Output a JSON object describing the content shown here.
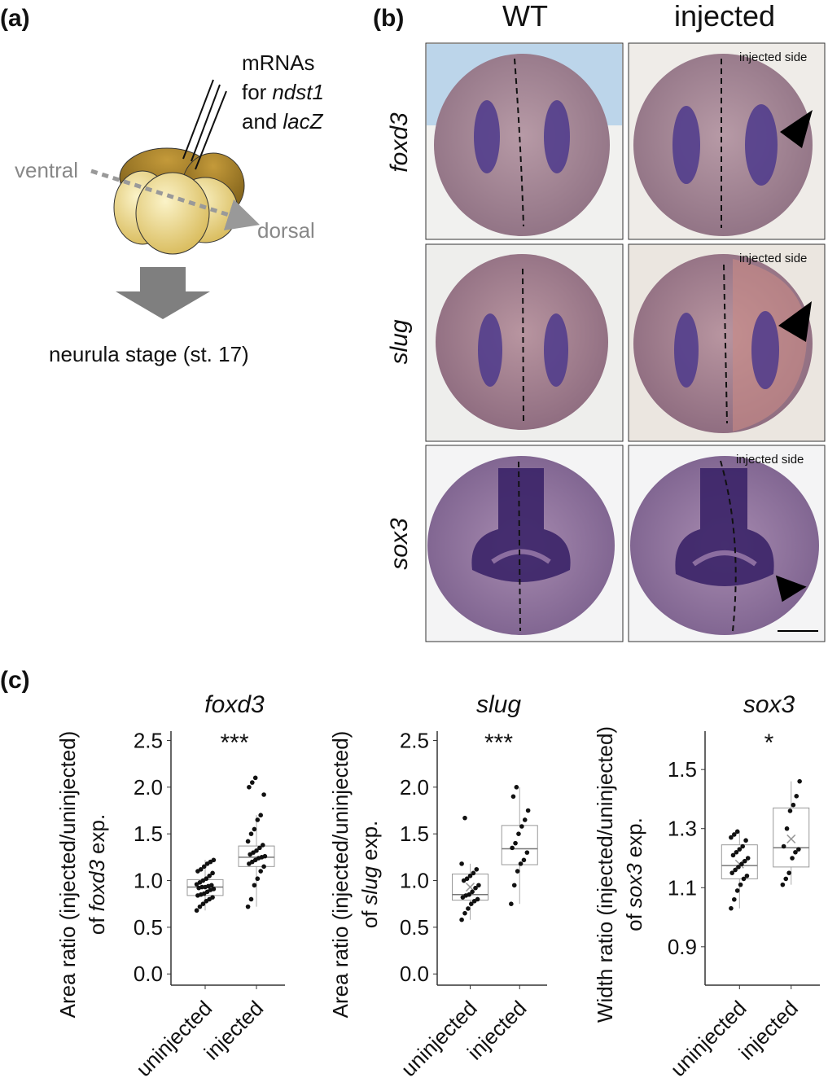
{
  "panel_a": {
    "label": "(a)",
    "mrna_line1": "mRNAs",
    "mrna_line2": [
      "for",
      "ndst1"
    ],
    "mrna_line3": [
      "and",
      "lacZ"
    ],
    "ventral": "ventral",
    "dorsal": "dorsal",
    "stage": "neurula stage (st. 17)"
  },
  "panel_b": {
    "label": "(b)",
    "columns": [
      "WT",
      "injected"
    ],
    "rows": [
      "foxd3",
      "slug",
      "sox3"
    ],
    "annotation": "injected side"
  },
  "panel_c": {
    "label": "(c)"
  },
  "chart_data": [
    {
      "type": "box",
      "title": "foxd3",
      "significance": "***",
      "y_label_line1": "Area ratio  (injected/uninjected)",
      "y_label_line2": [
        "of",
        "foxd3",
        "exp."
      ],
      "categories": [
        "uninjected",
        "injected"
      ],
      "ylim": [
        -0.12,
        2.6
      ],
      "yticks": [
        2.5,
        {
          "value": 2,
          "label": "2.0"
        },
        1.5,
        {
          "value": 1,
          "label": "1.0"
        },
        0.5,
        {
          "value": 0,
          "label": "0.0"
        }
      ],
      "boxes": [
        {
          "q1": 0.84,
          "median": 0.93,
          "q3": 1.01,
          "whisker_low": 0.68,
          "whisker_high": 1.22,
          "points": [
            0.68,
            0.72,
            0.75,
            0.78,
            0.8,
            0.82,
            0.84,
            0.85,
            0.86,
            0.88,
            0.9,
            0.91,
            0.92,
            0.93,
            0.93,
            0.94,
            0.95,
            0.96,
            0.98,
            1.0,
            1.02,
            1.05,
            1.08,
            1.1,
            1.12,
            1.15,
            1.18,
            1.2,
            1.22
          ]
        },
        {
          "q1": 1.15,
          "median": 1.25,
          "q3": 1.37,
          "whisker_low": 0.72,
          "whisker_high": 1.7,
          "points": [
            0.72,
            0.8,
            0.95,
            1.02,
            1.1,
            1.15,
            1.18,
            1.2,
            1.22,
            1.24,
            1.25,
            1.26,
            1.28,
            1.3,
            1.32,
            1.35,
            1.38,
            1.42,
            1.5,
            1.55,
            1.65,
            1.7,
            1.92,
            2.0,
            2.05,
            2.1
          ]
        }
      ]
    },
    {
      "type": "box",
      "title": "slug",
      "significance": "***",
      "y_label_line1": "Area ratio  (injected/uninjected)",
      "y_label_line2": [
        "of",
        "slug",
        "exp."
      ],
      "categories": [
        "uninjected",
        "injected"
      ],
      "ylim": [
        -0.12,
        2.6
      ],
      "yticks": [
        2.5,
        {
          "value": 2,
          "label": "2.0"
        },
        1.5,
        {
          "value": 1,
          "label": "1.0"
        },
        0.5,
        {
          "value": 0,
          "label": "0.0"
        }
      ],
      "boxes": [
        {
          "q1": 0.79,
          "median": 0.85,
          "q3": 1.07,
          "whisker_low": 0.58,
          "whisker_high": 1.18,
          "mean": 0.93,
          "points": [
            0.58,
            0.65,
            0.7,
            0.75,
            0.78,
            0.8,
            0.82,
            0.84,
            0.85,
            0.88,
            0.92,
            0.95,
            1.0,
            1.02,
            1.05,
            1.08,
            1.12,
            1.18,
            1.67
          ]
        },
        {
          "q1": 1.17,
          "median": 1.34,
          "q3": 1.59,
          "whisker_low": 0.75,
          "whisker_high": 2.0,
          "points": [
            0.75,
            0.95,
            1.1,
            1.18,
            1.22,
            1.3,
            1.35,
            1.4,
            1.5,
            1.58,
            1.65,
            1.75,
            1.9,
            2.0
          ]
        }
      ]
    },
    {
      "type": "box",
      "title": "sox3",
      "significance": "*",
      "y_label_line1": "Width ratio (injected/uninjected)",
      "y_label_line2": [
        "of",
        "sox3",
        "exp."
      ],
      "categories": [
        "uninjected",
        "injected"
      ],
      "ylim": [
        0.77,
        1.63
      ],
      "yticks": [
        1.5,
        1.3,
        1.1,
        0.9
      ],
      "boxes": [
        {
          "q1": 1.13,
          "median": 1.175,
          "q3": 1.245,
          "whisker_low": 1.03,
          "whisker_high": 1.29,
          "mean": 1.18,
          "points": [
            1.03,
            1.06,
            1.09,
            1.11,
            1.13,
            1.14,
            1.15,
            1.16,
            1.17,
            1.18,
            1.19,
            1.2,
            1.21,
            1.22,
            1.23,
            1.24,
            1.26,
            1.27,
            1.28,
            1.29
          ]
        },
        {
          "q1": 1.17,
          "median": 1.235,
          "q3": 1.37,
          "whisker_low": 1.11,
          "whisker_high": 1.46,
          "mean": 1.265,
          "points": [
            1.11,
            1.13,
            1.15,
            1.2,
            1.22,
            1.23,
            1.24,
            1.3,
            1.36,
            1.38,
            1.41,
            1.46
          ]
        }
      ]
    }
  ]
}
